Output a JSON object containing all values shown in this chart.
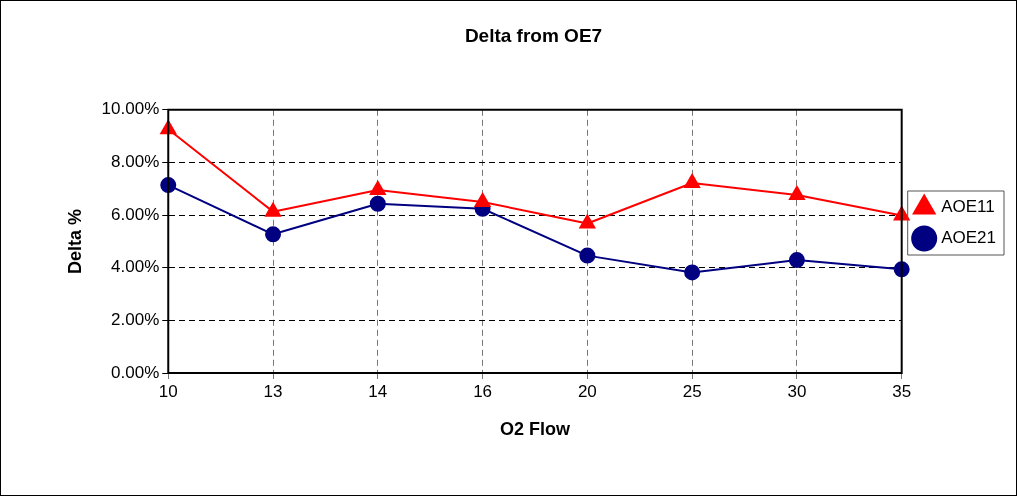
{
  "chart_data": {
    "type": "line",
    "title": "Delta from OE7",
    "xlabel": "O2 Flow",
    "ylabel": "Delta %",
    "categories": [
      "10",
      "13",
      "14",
      "16",
      "20",
      "25",
      "30",
      "35"
    ],
    "series": [
      {
        "name": "AOE11",
        "color": "#ff0000",
        "marker": "triangle",
        "values": [
          9.26,
          6.13,
          6.95,
          6.5,
          5.68,
          7.22,
          6.76,
          5.98
        ]
      },
      {
        "name": "AOE21",
        "color": "#000080",
        "marker": "circle",
        "values": [
          7.14,
          5.27,
          6.43,
          6.24,
          4.46,
          3.82,
          4.29,
          3.94
        ]
      }
    ],
    "ylim": [
      0,
      10
    ],
    "yticks": [
      {
        "value": 0,
        "label": "0.00%"
      },
      {
        "value": 2,
        "label": "2.00%"
      },
      {
        "value": 4,
        "label": "4.00%"
      },
      {
        "value": 6,
        "label": "6.00%"
      },
      {
        "value": 8,
        "label": "8.00%"
      },
      {
        "value": 10,
        "label": "10.00%"
      }
    ],
    "grid": true,
    "legend": "right",
    "line_style": "solid"
  }
}
